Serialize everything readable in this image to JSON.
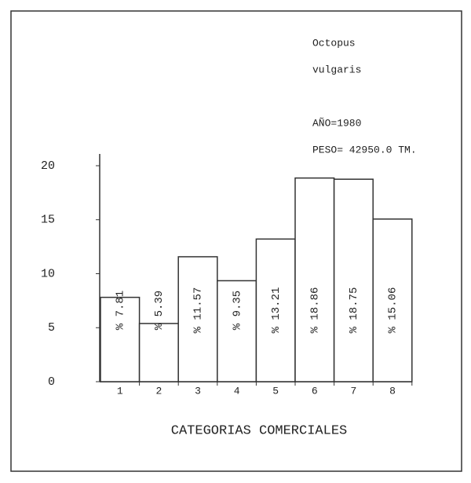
{
  "chart_data": {
    "type": "bar",
    "annotations": [
      "Octopus",
      "vulgaris",
      "AÑO=1980",
      "PESO= 42950.0 TM."
    ],
    "x_label": "CATEGORIAS COMERCIALES",
    "categories": [
      "1",
      "2",
      "3",
      "4",
      "5",
      "6",
      "7",
      "8"
    ],
    "values": [
      7.81,
      5.39,
      11.57,
      9.35,
      13.21,
      18.86,
      18.75,
      15.06
    ],
    "value_labels": [
      "% 7.81",
      "% 5.39",
      "% 11.57",
      "% 9.35",
      "% 13.21",
      "% 18.86",
      "% 18.75",
      "% 15.06"
    ],
    "color": "#ffffff",
    "ylim": [
      0,
      20
    ],
    "yticks": [
      0,
      5,
      10,
      15,
      20
    ],
    "grid": false
  }
}
